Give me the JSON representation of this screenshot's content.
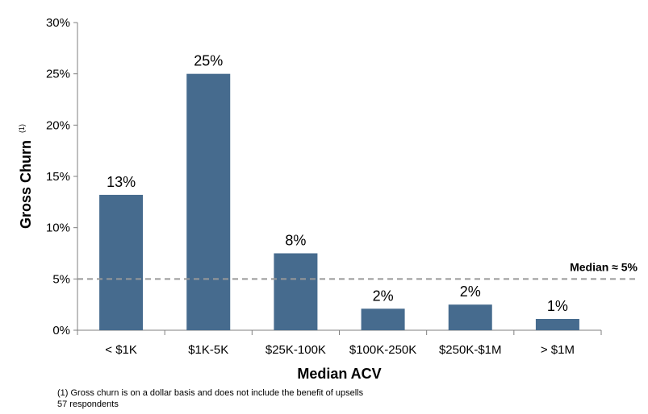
{
  "chart_data": {
    "type": "bar",
    "categories": [
      "< $1K",
      "$1K-5K",
      "$25K-100K",
      "$100K-250K",
      "$250K-$1M",
      "> $1M"
    ],
    "values": [
      13.2,
      25.0,
      7.5,
      2.1,
      2.5,
      1.1
    ],
    "data_labels": [
      "13%",
      "25%",
      "8%",
      "2%",
      "2%",
      "1%"
    ],
    "xlabel": "Median ACV",
    "ylabel": "Gross Churn",
    "ylabel_superscript": "(1)",
    "ylim": [
      0,
      30
    ],
    "yticks": [
      0,
      5,
      10,
      15,
      20,
      25,
      30
    ],
    "ytick_labels": [
      "0%",
      "5%",
      "10%",
      "15%",
      "20%",
      "25%",
      "30%"
    ],
    "bar_color": "#466b8e",
    "reference_line": {
      "value": 5,
      "label": "Median  ≈ 5%",
      "style": "dashed",
      "color": "#999999"
    },
    "grid": false,
    "legend": "none"
  },
  "footnotes": [
    "(1) Gross churn is on a dollar basis and does not include the benefit of upsells",
    "57 respondents"
  ]
}
